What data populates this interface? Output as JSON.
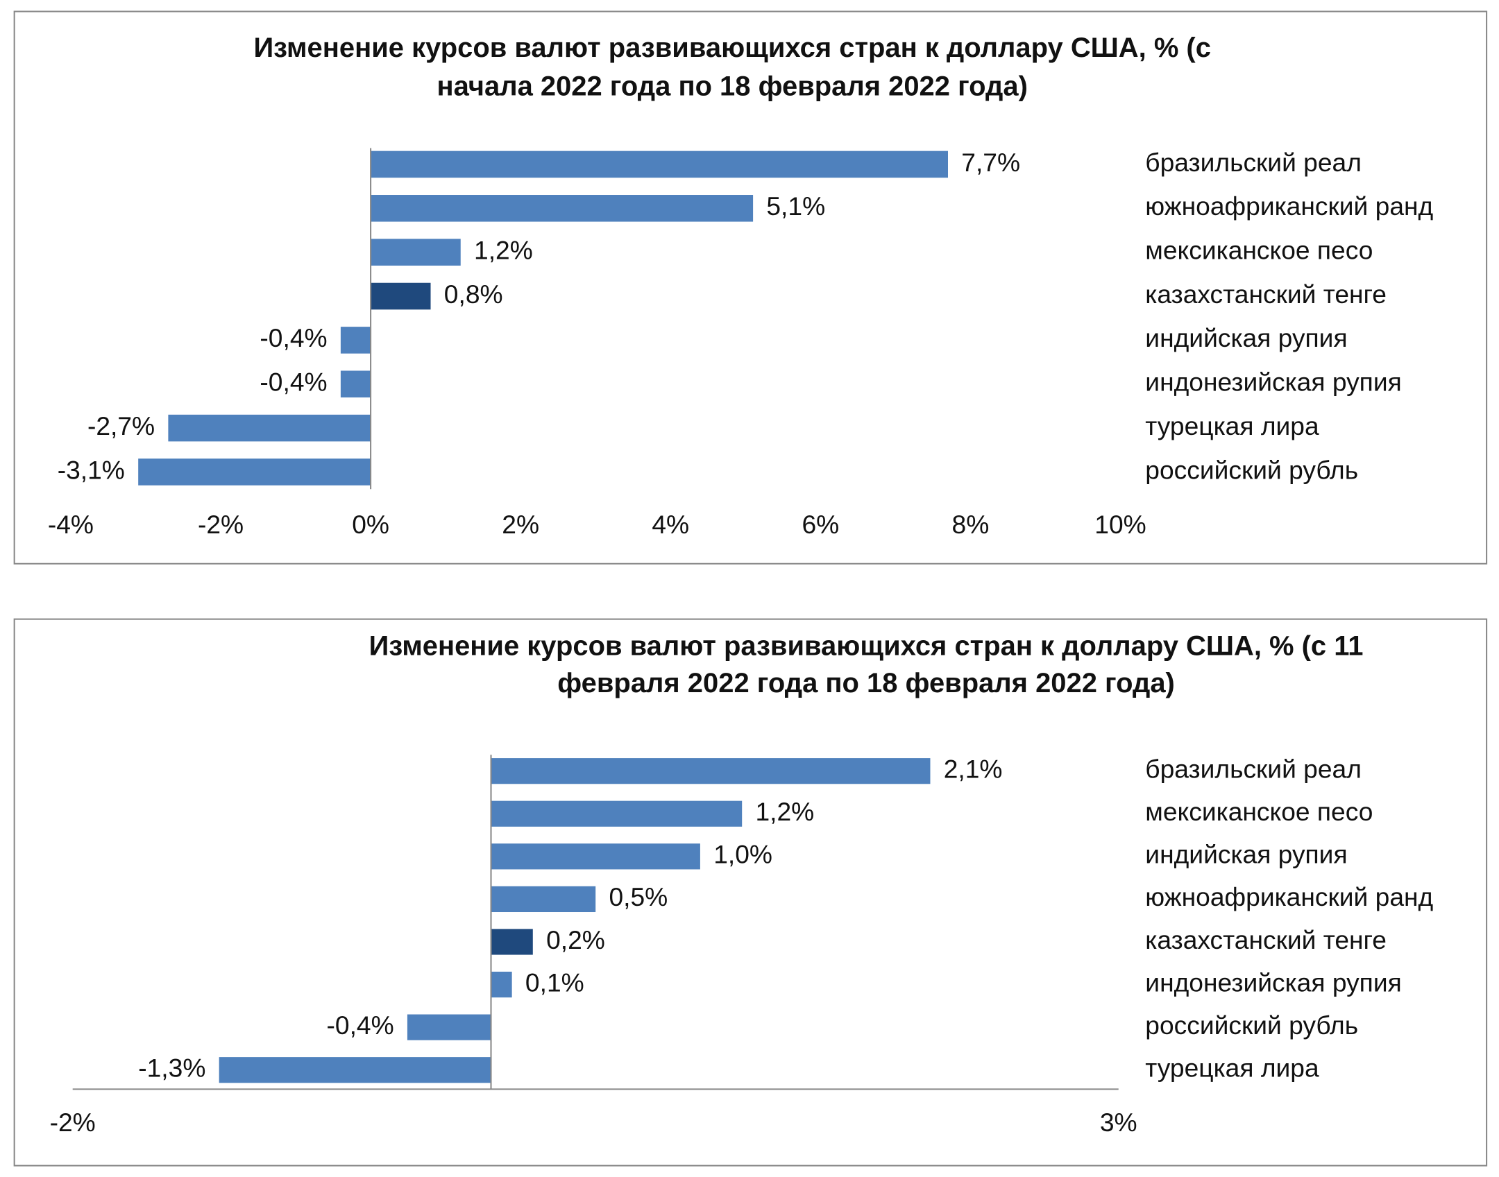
{
  "chart_data": [
    {
      "type": "barh",
      "title": [
        "Изменение курсов валют развивающихся стран к доллару США, % (с",
        "начала 2022 года по 18 февраля 2022 года)"
      ],
      "categories": [
        "бразильский реал",
        "южноафриканский ранд",
        "мексиканское песо",
        "казахстанский тенге",
        "индийская рупия",
        "индонезийская рупия",
        "турецкая лира",
        "российский рубль"
      ],
      "values": [
        7.7,
        5.1,
        1.2,
        0.8,
        -0.4,
        -0.4,
        -2.7,
        -3.1
      ],
      "value_labels": [
        "7,7%",
        "5,1%",
        "1,2%",
        "0,8%",
        "-0,4%",
        "-0,4%",
        "-2,7%",
        "-3,1%"
      ],
      "colors": [
        "#4f81bd",
        "#4f81bd",
        "#4f81bd",
        "#1f497d",
        "#4f81bd",
        "#4f81bd",
        "#4f81bd",
        "#4f81bd"
      ],
      "xlim": [
        -4,
        10
      ],
      "xticks": [
        {
          "value": -4,
          "label": "-4%"
        },
        {
          "value": -2,
          "label": "-2%"
        },
        {
          "value": 0,
          "label": "0%"
        },
        {
          "value": 2,
          "label": "2%"
        },
        {
          "value": 4,
          "label": "4%"
        },
        {
          "value": 6,
          "label": "6%"
        },
        {
          "value": 8,
          "label": "8%"
        },
        {
          "value": 10,
          "label": "10%"
        }
      ]
    },
    {
      "type": "barh",
      "title": [
        "Изменение курсов валют развивающихся стран к доллару США, % (с 11",
        "февраля 2022 года по 18 февраля 2022 года)"
      ],
      "categories": [
        "бразильский реал",
        "мексиканское песо",
        "индийская рупия",
        "южноафриканский ранд",
        "казахстанский тенге",
        "индонезийская рупия",
        "российский рубль",
        "турецкая лира"
      ],
      "values": [
        2.1,
        1.2,
        1.0,
        0.5,
        0.2,
        0.1,
        -0.4,
        -1.3
      ],
      "value_labels": [
        "2,1%",
        "1,2%",
        "1,0%",
        "0,5%",
        "0,2%",
        "0,1%",
        "-0,4%",
        "-1,3%"
      ],
      "colors": [
        "#4f81bd",
        "#4f81bd",
        "#4f81bd",
        "#4f81bd",
        "#1f497d",
        "#4f81bd",
        "#4f81bd",
        "#4f81bd"
      ],
      "xlim": [
        -2,
        3
      ],
      "xticks": [
        {
          "value": -2,
          "label": "-2%"
        },
        {
          "value": 3,
          "label": "3%"
        }
      ]
    }
  ]
}
